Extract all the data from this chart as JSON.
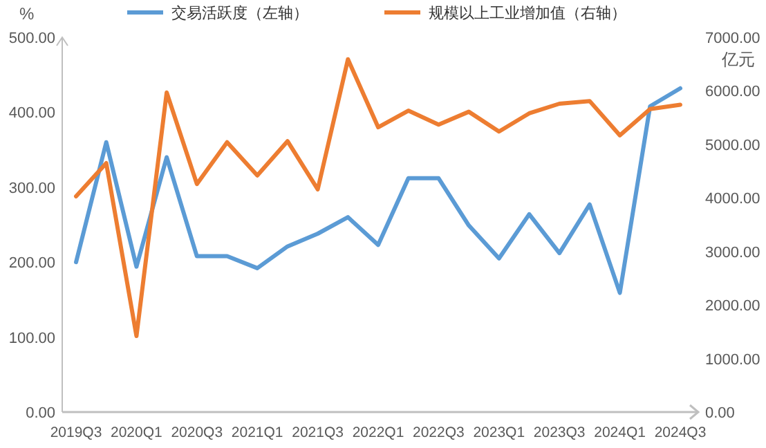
{
  "chart_data": {
    "type": "line",
    "ylabel": "%",
    "y2label": "亿元",
    "categories": [
      "2019Q3",
      null,
      "2020Q1",
      null,
      "2020Q3",
      null,
      "2021Q1",
      null,
      "2021Q3",
      null,
      "2022Q1",
      null,
      "2022Q3",
      null,
      "2023Q1",
      null,
      "2023Q3",
      null,
      "2024Q1",
      null,
      "2024Q3"
    ],
    "series": [
      {
        "name": "交易活跃度（左轴）",
        "color": "#5b9bd5",
        "values": [
          200,
          360,
          194,
          340,
          208,
          208,
          192,
          221,
          238,
          260,
          223,
          312,
          312,
          249,
          205,
          264,
          212,
          277,
          159,
          408,
          432
        ]
      },
      {
        "name": "规模以上工业增加值（右轴）",
        "color": "#ed7d31",
        "axis": "y2",
        "values": [
          4030,
          4650,
          1420,
          5970,
          4260,
          5040,
          4420,
          5060,
          4160,
          6590,
          5320,
          5630,
          5370,
          5610,
          5240,
          5580,
          5760,
          5810,
          5170,
          5660,
          5740
        ]
      }
    ],
    "ylim": [
      0,
      500
    ],
    "yticks": [
      {
        "value": 0,
        "label": "0.00"
      },
      {
        "value": 100,
        "label": "100.00"
      },
      {
        "value": 200,
        "label": "200.00"
      },
      {
        "value": 300,
        "label": "300.00"
      },
      {
        "value": 400,
        "label": "400.00"
      },
      {
        "value": 500,
        "label": "500.00"
      }
    ],
    "y2lim": [
      0,
      7000
    ],
    "y2ticks": [
      {
        "value": 0,
        "label": "0.00"
      },
      {
        "value": 1000,
        "label": "1000.00"
      },
      {
        "value": 2000,
        "label": "2000.00"
      },
      {
        "value": 3000,
        "label": "3000.00"
      },
      {
        "value": 4000,
        "label": "4000.00"
      },
      {
        "value": 5000,
        "label": "5000.00"
      },
      {
        "value": 6000,
        "label": "6000.00"
      },
      {
        "value": 7000,
        "label": "7000.00"
      }
    ],
    "grid": false,
    "legend": "top",
    "marker": "none",
    "line_style": "solid"
  }
}
